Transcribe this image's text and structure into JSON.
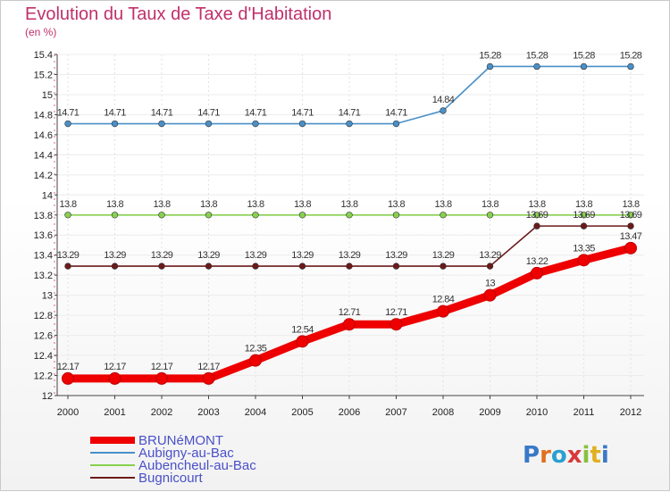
{
  "title": "Evolution du Taux de Taxe d'Habitation",
  "subtitle": "(en %)",
  "brand": "Proxiti",
  "chart_data": {
    "type": "line",
    "x": [
      "2000",
      "2001",
      "2002",
      "2003",
      "2004",
      "2005",
      "2006",
      "2007",
      "2008",
      "2009",
      "2010",
      "2011",
      "2012"
    ],
    "ylim": [
      12,
      15.4
    ],
    "yticks": [
      12,
      12.2,
      12.4,
      12.6,
      12.8,
      13,
      13.2,
      13.4,
      13.6,
      13.8,
      14,
      14.2,
      14.4,
      14.6,
      14.8,
      15,
      15.2,
      15.4
    ],
    "ytick_labels": [
      "12",
      "12.2",
      "12.4",
      "12.6",
      "12.8",
      "13",
      "13.2",
      "13.4",
      "13.6",
      "13.8",
      "14",
      "14.2",
      "14.4",
      "14.6",
      "14.8",
      "15",
      "15.2",
      "15.4"
    ],
    "legend_position": "bottom-left",
    "series": [
      {
        "name": "BRUNéMONT",
        "color": "#ee0000",
        "values": [
          12.17,
          12.17,
          12.17,
          12.17,
          12.35,
          12.54,
          12.71,
          12.71,
          12.84,
          13,
          13.22,
          13.35,
          13.47
        ],
        "labels": [
          "12.17",
          "12.17",
          "12.17",
          "12.17",
          "12.35",
          "12.54",
          "12.71",
          "12.71",
          "12.84",
          "13",
          "13.22",
          "13.35",
          "13.47"
        ]
      },
      {
        "name": "Aubigny-au-Bac",
        "color": "#4a90c8",
        "values": [
          14.71,
          14.71,
          14.71,
          14.71,
          14.71,
          14.71,
          14.71,
          14.71,
          14.84,
          15.28,
          15.28,
          15.28,
          15.28
        ],
        "labels": [
          "14.71",
          "14.71",
          "14.71",
          "14.71",
          "14.71",
          "14.71",
          "14.71",
          "14.71",
          "14.84",
          "15.28",
          "15.28",
          "15.28",
          "15.28"
        ]
      },
      {
        "name": "Aubencheul-au-Bac",
        "color": "#88d050",
        "values": [
          13.8,
          13.8,
          13.8,
          13.8,
          13.8,
          13.8,
          13.8,
          13.8,
          13.8,
          13.8,
          13.8,
          13.8,
          13.8
        ],
        "labels": [
          "13.8",
          "13.8",
          "13.8",
          "13.8",
          "13.8",
          "13.8",
          "13.8",
          "13.8",
          "13.8",
          "13.8",
          "13.8",
          "13.8",
          "13.8"
        ]
      },
      {
        "name": "Bugnicourt",
        "color": "#6b1a1a",
        "values": [
          13.29,
          13.29,
          13.29,
          13.29,
          13.29,
          13.29,
          13.29,
          13.29,
          13.29,
          13.29,
          13.69,
          13.69,
          13.69
        ],
        "labels": [
          "13.29",
          "13.29",
          "13.29",
          "13.29",
          "13.29",
          "13.29",
          "13.29",
          "13.29",
          "13.29",
          "13.29",
          "13.69",
          "13.69",
          "13.69"
        ]
      }
    ]
  }
}
